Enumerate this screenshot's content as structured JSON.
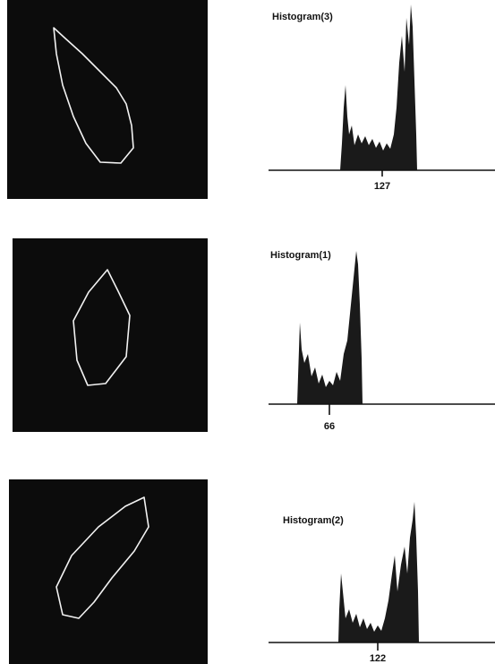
{
  "panels": [
    {
      "histogram": {
        "title": "Histogram(3)",
        "tick_label": "127"
      }
    },
    {
      "histogram": {
        "title": "Histogram(1)",
        "tick_label": "66"
      }
    },
    {
      "histogram": {
        "title": "Histogram(2)",
        "tick_label": "122"
      }
    }
  ]
}
